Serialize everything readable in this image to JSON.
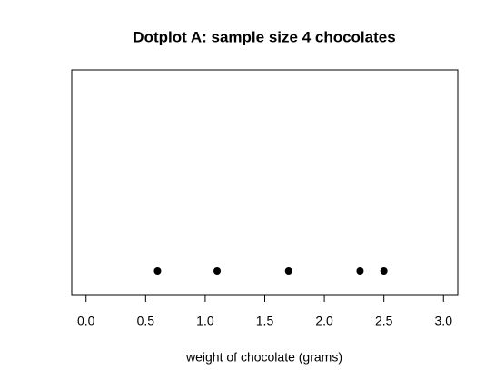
{
  "chart_data": {
    "type": "dot",
    "title": "Dotplot A: sample size 4 chocolates",
    "x_label": "weight of chocolate (grams)",
    "values": [
      0.6,
      1.1,
      1.7,
      2.3,
      2.5
    ],
    "color": "#000000",
    "xlim": [
      -0.12,
      3.12
    ],
    "xticks": [
      {
        "value": 0,
        "label": "0.0"
      },
      0.5,
      {
        "value": 1,
        "label": "1.0"
      },
      1.5,
      {
        "value": 2,
        "label": "2.0"
      },
      2.5,
      {
        "value": 3,
        "label": "3.0"
      }
    ]
  }
}
